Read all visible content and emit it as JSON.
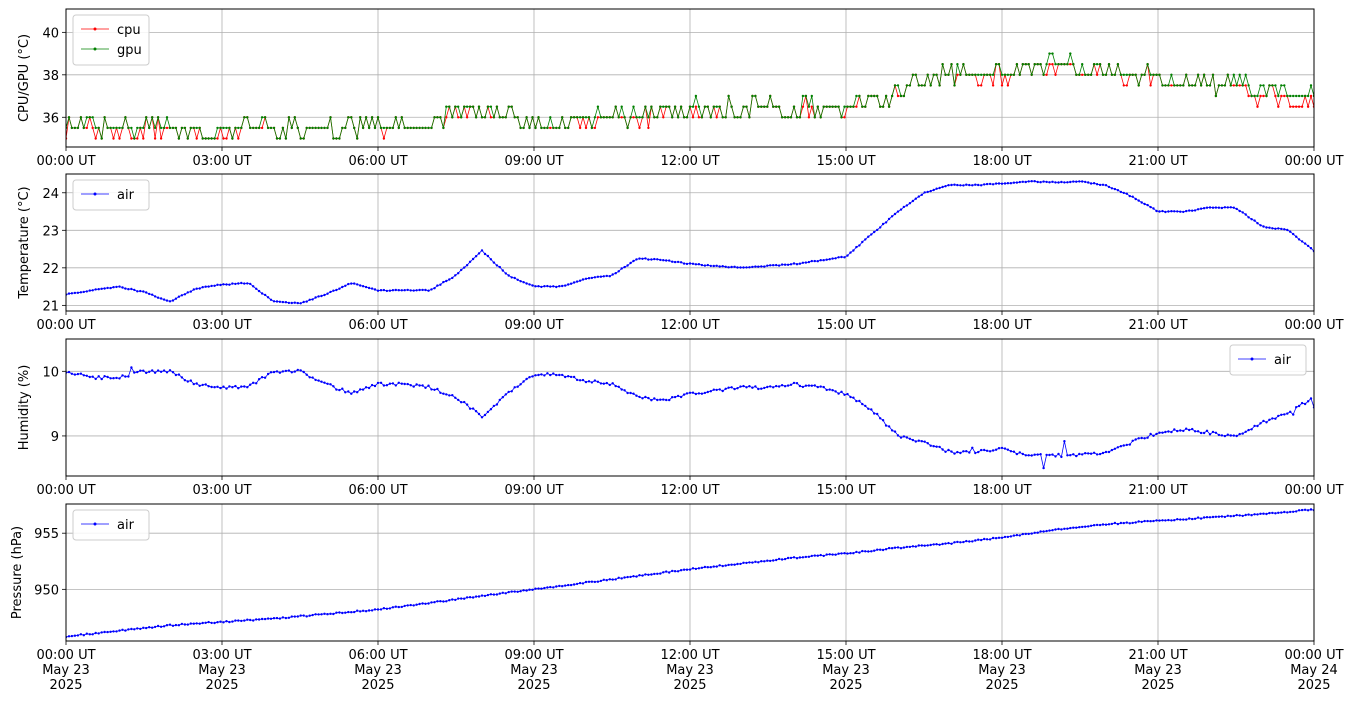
{
  "chart_data": [
    {
      "type": "line",
      "ylabel": "CPU/GPU (°C)",
      "ylim": [
        34.6,
        41.1
      ],
      "yticks": [
        36,
        38,
        40
      ],
      "grid": true,
      "legend_position": "upper-left",
      "x_tick_labels": [
        "00:00 UT",
        "03:00 UT",
        "06:00 UT",
        "09:00 UT",
        "12:00 UT",
        "15:00 UT",
        "18:00 UT",
        "21:00 UT",
        "00:00 UT"
      ],
      "series": [
        {
          "name": "cpu",
          "color": "#ff0000",
          "x": [
            0,
            1,
            2,
            3,
            4,
            5,
            6,
            7,
            7.5,
            8,
            9,
            10,
            11,
            12,
            13,
            14,
            15,
            15.8,
            16.2,
            16.5,
            17,
            18,
            19,
            20,
            21,
            22,
            22.5,
            23,
            24
          ],
          "y": [
            35.5,
            35.5,
            35.5,
            35.3,
            35.5,
            35.5,
            35.5,
            35.8,
            36.0,
            36.3,
            35.7,
            35.8,
            36.0,
            36.3,
            36.5,
            36.3,
            36.5,
            36.8,
            37.5,
            37.8,
            38.0,
            38.0,
            38.3,
            38.2,
            37.8,
            37.6,
            37.6,
            37.0,
            36.7
          ]
        },
        {
          "name": "gpu",
          "color": "#008000",
          "x": [
            0,
            1,
            2,
            3,
            4,
            5,
            6,
            7,
            7.5,
            8,
            9,
            10,
            11,
            12,
            13,
            14,
            15,
            15.8,
            16.2,
            16.5,
            17,
            18,
            19,
            20,
            21,
            22,
            22.5,
            23,
            24
          ],
          "y": [
            35.7,
            35.6,
            35.6,
            35.5,
            35.5,
            35.5,
            35.6,
            35.9,
            36.2,
            36.4,
            35.8,
            35.9,
            36.1,
            36.4,
            36.5,
            36.4,
            36.6,
            37.0,
            37.6,
            37.9,
            38.1,
            38.2,
            38.4,
            38.3,
            37.9,
            37.6,
            37.8,
            37.3,
            37.0
          ]
        }
      ]
    },
    {
      "type": "line",
      "ylabel": "Temperature (°C)",
      "ylim": [
        20.85,
        24.5
      ],
      "yticks": [
        21,
        22,
        23,
        24
      ],
      "grid": true,
      "legend_position": "upper-left",
      "x_tick_labels": [
        "00:00 UT",
        "03:00 UT",
        "06:00 UT",
        "09:00 UT",
        "12:00 UT",
        "15:00 UT",
        "18:00 UT",
        "21:00 UT",
        "00:00 UT"
      ],
      "series": [
        {
          "name": "air",
          "color": "#0000ff",
          "x": [
            0,
            0.5,
            1,
            1.5,
            2,
            2.5,
            3,
            3.5,
            4,
            4.5,
            5,
            5.5,
            6,
            6.5,
            7,
            7.5,
            8,
            8.5,
            9,
            9.5,
            10,
            10.5,
            11,
            11.5,
            12,
            12.5,
            13,
            13.5,
            14,
            14.5,
            15,
            15.5,
            16,
            16.5,
            17,
            17.5,
            18,
            18.5,
            19,
            19.5,
            20,
            20.5,
            21,
            21.5,
            22,
            22.5,
            23,
            23.5,
            24
          ],
          "y": [
            21.3,
            21.4,
            21.5,
            21.35,
            21.1,
            21.45,
            21.55,
            21.6,
            21.1,
            21.05,
            21.3,
            21.6,
            21.4,
            21.4,
            21.4,
            21.8,
            22.45,
            21.8,
            21.5,
            21.5,
            21.7,
            21.8,
            22.25,
            22.2,
            22.1,
            22.05,
            22.0,
            22.05,
            22.1,
            22.2,
            22.3,
            22.9,
            23.5,
            24.0,
            24.2,
            24.2,
            24.25,
            24.3,
            24.28,
            24.3,
            24.2,
            23.9,
            23.5,
            23.5,
            23.6,
            23.6,
            23.1,
            23.0,
            22.45
          ]
        }
      ]
    },
    {
      "type": "line",
      "ylabel": "Humidity (%)",
      "ylim": [
        8.38,
        10.5
      ],
      "yticks": [
        9,
        10
      ],
      "grid": true,
      "legend_position": "upper-right",
      "x_tick_labels": [
        "00:00 UT",
        "03:00 UT",
        "06:00 UT",
        "09:00 UT",
        "12:00 UT",
        "15:00 UT",
        "18:00 UT",
        "21:00 UT",
        "00:00 UT"
      ],
      "series": [
        {
          "name": "air",
          "color": "#0000ff",
          "x": [
            0,
            0.5,
            1,
            1.5,
            2,
            2.5,
            3,
            3.5,
            4,
            4.5,
            5,
            5.5,
            6,
            6.5,
            7,
            7.5,
            8,
            8.5,
            9,
            9.5,
            10,
            10.5,
            11,
            11.5,
            12,
            12.5,
            13,
            13.5,
            14,
            14.5,
            15,
            15.5,
            16,
            16.5,
            17,
            17.5,
            18,
            18.5,
            19,
            19.5,
            20,
            20.5,
            21,
            21.5,
            22,
            22.5,
            23,
            23.5,
            24
          ],
          "y": [
            10.0,
            9.9,
            9.9,
            10.0,
            10.0,
            9.8,
            9.75,
            9.75,
            10.0,
            10.0,
            9.8,
            9.65,
            9.8,
            9.8,
            9.75,
            9.6,
            9.3,
            9.65,
            9.95,
            9.95,
            9.85,
            9.8,
            9.6,
            9.55,
            9.65,
            9.7,
            9.75,
            9.75,
            9.8,
            9.75,
            9.65,
            9.4,
            9.0,
            8.9,
            8.75,
            8.75,
            8.8,
            8.7,
            8.7,
            8.7,
            8.75,
            8.9,
            9.05,
            9.1,
            9.05,
            9.0,
            9.2,
            9.35,
            9.6
          ]
        }
      ]
    },
    {
      "type": "line",
      "ylabel": "Pressure (hPa)",
      "ylim": [
        945.4,
        957.6
      ],
      "yticks": [
        950,
        955
      ],
      "grid": true,
      "legend_position": "upper-left",
      "x_tick_labels": [
        "00:00 UT\nMay 23\n2025",
        "03:00 UT\nMay 23\n2025",
        "06:00 UT\nMay 23\n2025",
        "09:00 UT\nMay 23\n2025",
        "12:00 UT\nMay 23\n2025",
        "15:00 UT\nMay 23\n2025",
        "18:00 UT\nMay 23\n2025",
        "21:00 UT\nMay 23\n2025",
        "00:00 UT\nMay 24\n2025"
      ],
      "series": [
        {
          "name": "air",
          "color": "#0000ff",
          "x": [
            0,
            1,
            2,
            3,
            4,
            5,
            6,
            7,
            8,
            9,
            10,
            11,
            12,
            13,
            14,
            15,
            16,
            17,
            18,
            19,
            20,
            21,
            22,
            23,
            24
          ],
          "y": [
            945.8,
            946.3,
            946.8,
            947.1,
            947.4,
            947.8,
            948.2,
            948.8,
            949.4,
            950.0,
            950.6,
            951.2,
            951.8,
            952.3,
            952.8,
            953.2,
            953.7,
            954.1,
            954.6,
            955.3,
            955.8,
            956.1,
            956.4,
            956.7,
            957.1
          ]
        }
      ]
    }
  ]
}
